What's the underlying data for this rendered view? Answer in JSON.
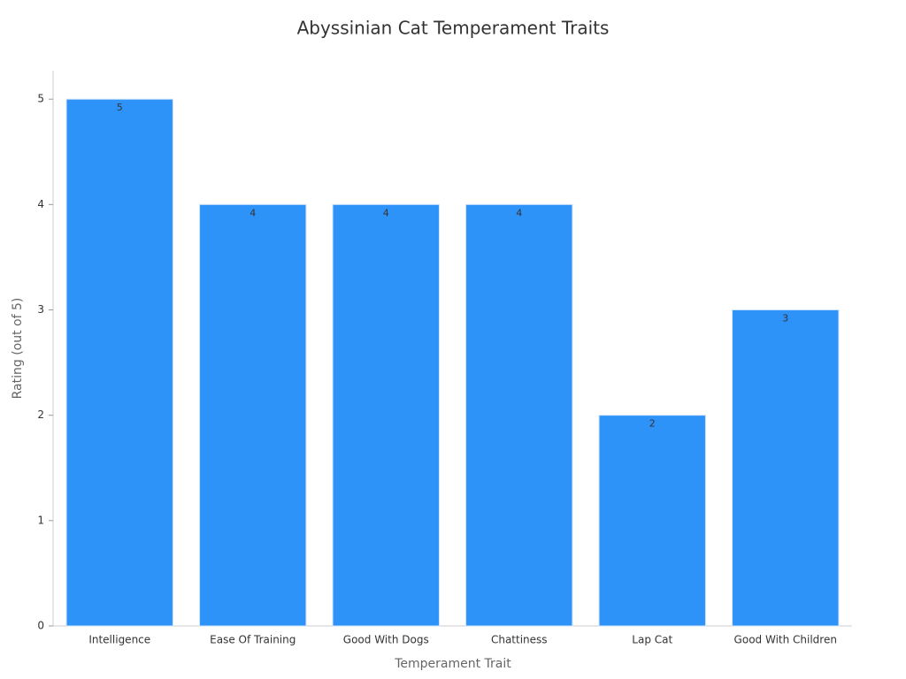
{
  "chart_data": {
    "type": "bar",
    "title": "Abyssinian Cat Temperament Traits",
    "x_label": "Temperament Trait",
    "y_label": "Rating (out of 5)",
    "categories": [
      "Intelligence",
      "Ease Of Training",
      "Good With Dogs",
      "Chattiness",
      "Lap Cat",
      "Good With Children"
    ],
    "values": [
      5,
      4,
      4,
      4,
      2,
      3
    ],
    "color": "#2e93f9",
    "ylim": [
      0,
      5.27
    ],
    "yticks": [
      0,
      1,
      2,
      3,
      4,
      5
    ],
    "grid": false
  }
}
